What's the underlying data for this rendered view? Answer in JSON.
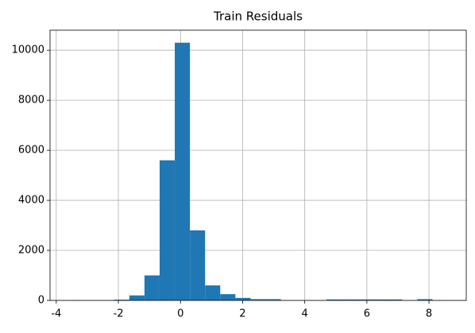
{
  "chart_data": {
    "type": "histogram",
    "title": "Train Residuals",
    "bins": [
      -3.6,
      -3.112,
      -2.624,
      -2.136,
      -1.648,
      -1.16,
      -0.672,
      -0.184,
      0.304,
      0.792,
      1.28,
      1.768,
      2.256,
      2.744,
      3.232,
      3.72,
      4.208,
      4.696,
      5.184,
      5.672,
      6.16,
      6.648,
      7.136,
      7.624,
      8.112,
      8.6
    ],
    "values": [
      1,
      0,
      0,
      30,
      200,
      1000,
      5600,
      10300,
      2800,
      600,
      250,
      100,
      50,
      50,
      0,
      0,
      0,
      40,
      40,
      40,
      40,
      40,
      0,
      50,
      1
    ],
    "color": "#1f77b4",
    "xlim": [
      -4.2,
      9.2
    ],
    "xticks": [
      -4,
      -2,
      0,
      2,
      4,
      6,
      8
    ],
    "ylim": [
      0,
      10800
    ],
    "yticks": [
      0,
      2000,
      4000,
      6000,
      8000,
      10000
    ],
    "grid": true
  }
}
